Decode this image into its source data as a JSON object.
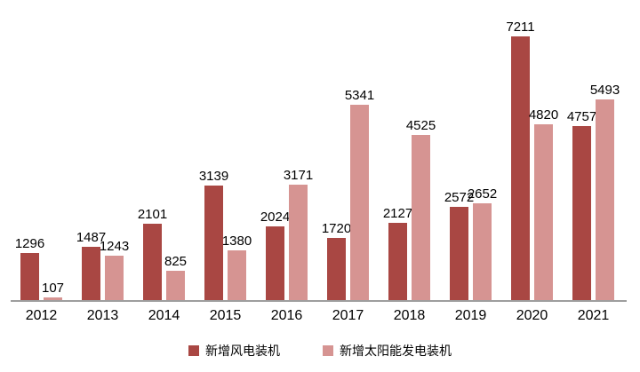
{
  "chart_data": {
    "type": "bar",
    "title": "",
    "xlabel": "",
    "ylabel": "",
    "categories": [
      "2012",
      "2013",
      "2014",
      "2015",
      "2016",
      "2017",
      "2018",
      "2019",
      "2020",
      "2021"
    ],
    "series": [
      {
        "name": "新增风电装机",
        "color": "#A94743",
        "values": [
          1296,
          1487,
          2101,
          3139,
          2024,
          1720,
          2127,
          2572,
          7211,
          4757
        ]
      },
      {
        "name": "新增太阳能发电装机",
        "color": "#D69492",
        "values": [
          107,
          1243,
          825,
          1380,
          3171,
          5341,
          4525,
          2652,
          4820,
          5493
        ]
      }
    ],
    "ylim": [
      0,
      7600
    ],
    "grid": false,
    "y_axis_visible": false,
    "data_labels": true,
    "legend_position": "bottom",
    "axis_line_color": "#9e9e9e",
    "background_color": "#ffffff",
    "label_color": "#000000"
  }
}
